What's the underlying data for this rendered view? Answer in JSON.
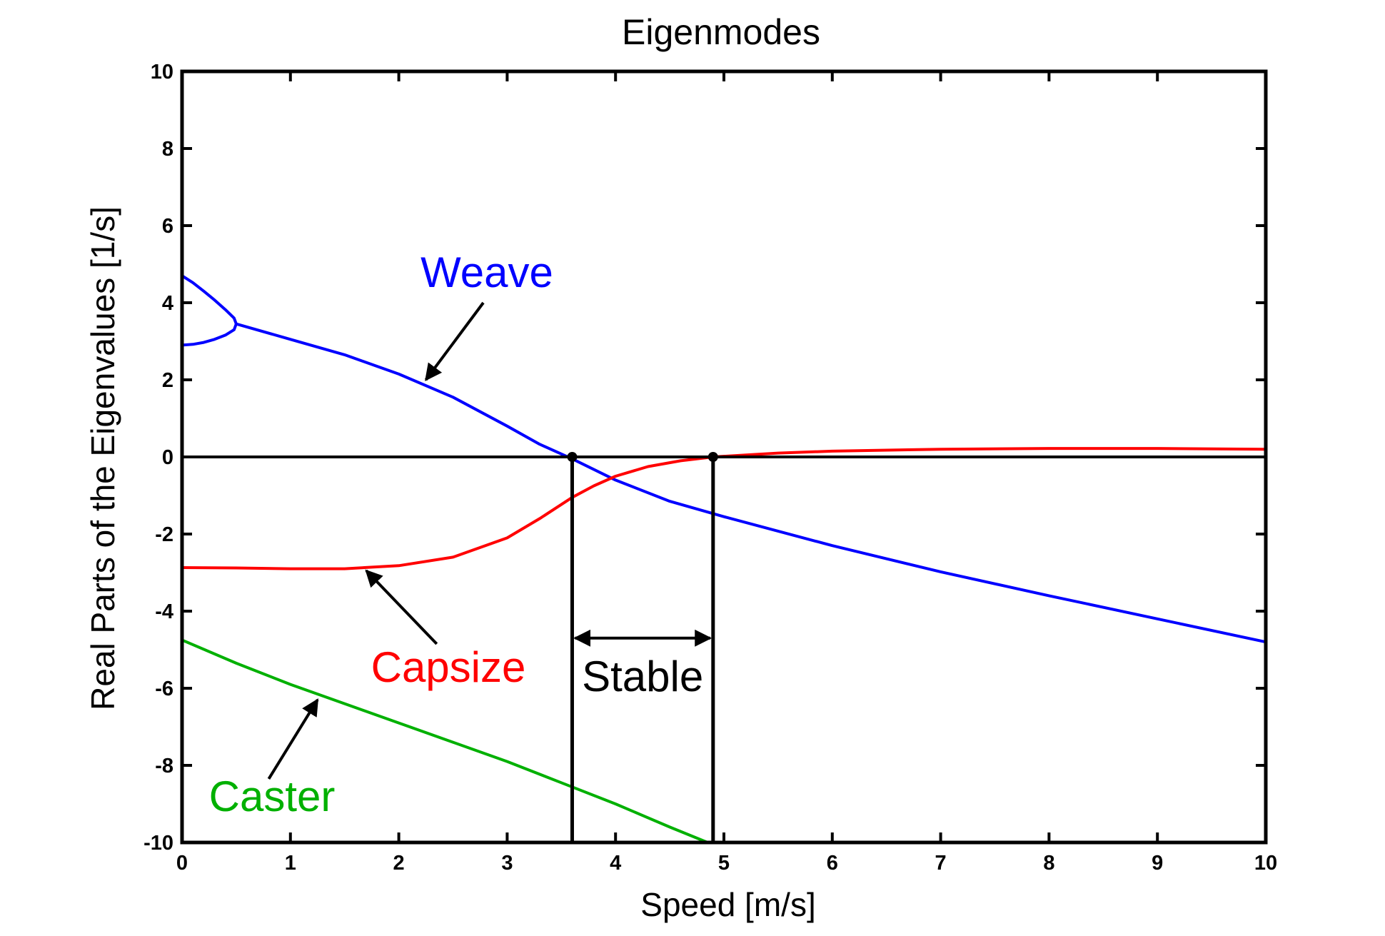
{
  "chart_data": {
    "type": "line",
    "title": "Eigenmodes",
    "xlabel": "Speed [m/s]",
    "ylabel": "Real Parts of the Eigenvalues [1/s]",
    "xlim": [
      0,
      10
    ],
    "ylim": [
      -10,
      10
    ],
    "grid": false,
    "xticks": [
      0,
      1,
      2,
      3,
      4,
      5,
      6,
      7,
      8,
      9,
      10
    ],
    "yticks": [
      -10,
      -8,
      -6,
      -4,
      -2,
      0,
      2,
      4,
      6,
      8,
      10
    ],
    "series": [
      {
        "name": "Weave (upper branch)",
        "color": "#0000ff",
        "x": [
          0,
          0.1,
          0.2,
          0.3,
          0.4,
          0.48,
          0.5
        ],
        "y": [
          4.7,
          4.52,
          4.3,
          4.07,
          3.82,
          3.6,
          3.45
        ]
      },
      {
        "name": "Weave (lower branch)",
        "color": "#0000ff",
        "x": [
          0,
          0.1,
          0.2,
          0.3,
          0.4,
          0.48,
          0.5
        ],
        "y": [
          2.9,
          2.92,
          2.97,
          3.05,
          3.16,
          3.3,
          3.45
        ]
      },
      {
        "name": "Weave",
        "color": "#0000ff",
        "x": [
          0.5,
          1.0,
          1.5,
          2.0,
          2.5,
          3.0,
          3.3,
          3.6,
          4.0,
          4.5,
          5.0,
          6.0,
          7.0,
          8.0,
          9.0,
          10.0
        ],
        "y": [
          3.45,
          3.05,
          2.65,
          2.15,
          1.55,
          0.8,
          0.33,
          -0.05,
          -0.6,
          -1.15,
          -1.55,
          -2.3,
          -2.98,
          -3.6,
          -4.2,
          -4.8
        ]
      },
      {
        "name": "Capsize",
        "color": "#ff0000",
        "x": [
          0,
          0.5,
          1.0,
          1.5,
          2.0,
          2.5,
          3.0,
          3.3,
          3.6,
          3.8,
          4.0,
          4.3,
          4.6,
          4.9,
          5.5,
          6.0,
          7.0,
          8.0,
          9.0,
          10.0
        ],
        "y": [
          -2.87,
          -2.88,
          -2.9,
          -2.9,
          -2.82,
          -2.6,
          -2.1,
          -1.6,
          -1.05,
          -0.75,
          -0.5,
          -0.25,
          -0.1,
          0.0,
          0.1,
          0.15,
          0.2,
          0.22,
          0.22,
          0.2
        ]
      },
      {
        "name": "Caster",
        "color": "#00b000",
        "x": [
          0,
          0.5,
          1.0,
          1.5,
          2.0,
          2.5,
          3.0,
          3.5,
          4.0,
          4.5,
          4.85
        ],
        "y": [
          -4.75,
          -5.35,
          -5.9,
          -6.4,
          -6.9,
          -7.4,
          -7.9,
          -8.45,
          -9.0,
          -9.6,
          -10.0
        ]
      }
    ],
    "markers": [
      {
        "name": "weave-critical-speed",
        "x": 3.6,
        "y": 0
      },
      {
        "name": "capsize-critical-speed",
        "x": 4.9,
        "y": 0
      }
    ],
    "annotations": {
      "weave": {
        "text": "Weave",
        "color": "#0000ff",
        "arrow_from": [
          2.78,
          4.0
        ],
        "arrow_to": [
          2.25,
          2.0
        ]
      },
      "capsize": {
        "text": "Capsize",
        "color": "#ff0000",
        "arrow_from": [
          2.35,
          -4.85
        ],
        "arrow_to": [
          1.7,
          -2.95
        ]
      },
      "caster": {
        "text": "Caster",
        "color": "#00b000",
        "arrow_from": [
          0.8,
          -8.35
        ],
        "arrow_to": [
          1.25,
          -6.3
        ]
      },
      "stable": {
        "text": "Stable",
        "color": "#000000",
        "range": [
          3.6,
          4.9
        ],
        "arrow_y": -4.7
      }
    }
  }
}
